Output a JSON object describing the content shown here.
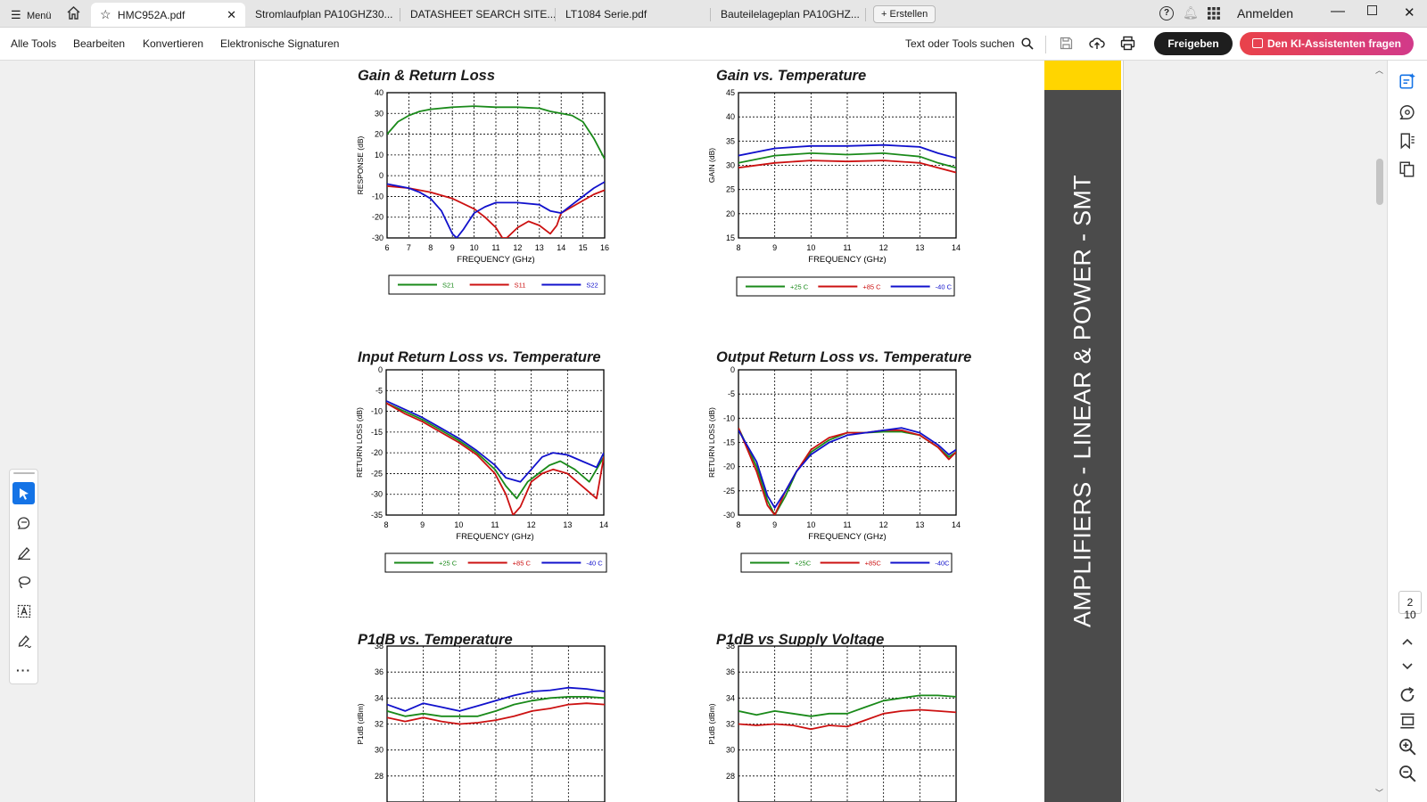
{
  "tabs": {
    "menu_label": "Menü",
    "items": [
      {
        "label": "HMC952A.pdf"
      },
      {
        "label": "Stromlaufplan PA10GHZ30..."
      },
      {
        "label": "DATASHEET SEARCH SITE..."
      },
      {
        "label": "LT1084  Serie.pdf"
      },
      {
        "label": "Bauteilelageplan PA10GHZ..."
      }
    ],
    "create_label": "Erstellen",
    "signin_label": "Anmelden"
  },
  "toolbar": {
    "menu": [
      "Alle Tools",
      "Bearbeiten",
      "Konvertieren",
      "Elektronische Signaturen"
    ],
    "search_label": "Text oder Tools suchen",
    "share_label": "Freigeben",
    "ai_label": "Den KI-Assistenten fragen"
  },
  "banner": {
    "text": "AMPLIFIERS - LINEAR & POWER - SMT",
    "colors": {
      "band": "#ffd500",
      "bar": "#4b4b4b"
    }
  },
  "page_nav": {
    "current": "2",
    "total": "10"
  },
  "chart_data": [
    {
      "type": "line",
      "title": "Gain & Return Loss",
      "xlabel": "FREQUENCY (GHz)",
      "ylabel": "RESPONSE (dB)",
      "xlim": [
        6,
        16
      ],
      "ylim": [
        -30,
        40
      ],
      "xticks": [
        "6",
        "7",
        "8",
        "9",
        "10",
        "11",
        "12",
        "13",
        "14",
        "15",
        "16"
      ],
      "yticks": [
        "-30",
        "-20",
        "-10",
        "0",
        "10",
        "20",
        "30",
        "40"
      ],
      "series": [
        {
          "name": "S21",
          "color": "#1a8a1a",
          "x": [
            6,
            6.5,
            7,
            7.5,
            8,
            9,
            10,
            11,
            12,
            13,
            13.5,
            14,
            14.5,
            15,
            15.5,
            16
          ],
          "y": [
            20,
            26,
            29,
            31,
            32,
            33,
            33.5,
            33,
            33,
            32.5,
            31,
            30,
            29,
            26,
            18,
            8
          ]
        },
        {
          "name": "S11",
          "color": "#cc1111",
          "x": [
            6,
            7,
            8,
            9,
            10,
            10.5,
            11,
            11.3,
            11.5,
            12,
            12.5,
            13,
            13.5,
            13.8,
            14,
            14.5,
            15,
            15.5,
            16
          ],
          "y": [
            -5,
            -6,
            -8,
            -11,
            -16,
            -20,
            -25,
            -30,
            -30,
            -25,
            -22,
            -24,
            -28,
            -24,
            -18,
            -15,
            -12,
            -9,
            -7
          ]
        },
        {
          "name": "S22",
          "color": "#1111cc",
          "x": [
            6,
            6.5,
            7,
            7.5,
            8,
            8.5,
            9,
            9.2,
            9.5,
            10,
            10.5,
            11,
            12,
            13,
            13.5,
            14,
            14.5,
            15,
            15.5,
            16
          ],
          "y": [
            -4,
            -5,
            -6,
            -8,
            -11,
            -17,
            -28,
            -30,
            -26,
            -18,
            -15,
            -13,
            -13,
            -14,
            -17,
            -18,
            -14,
            -10,
            -6,
            -3
          ]
        }
      ]
    },
    {
      "type": "line",
      "title": "Gain vs. Temperature",
      "xlabel": "FREQUENCY (GHz)",
      "ylabel": "GAIN (dB)",
      "xlim": [
        8,
        14
      ],
      "ylim": [
        15,
        45
      ],
      "xticks": [
        "8",
        "9",
        "10",
        "11",
        "12",
        "13",
        "14"
      ],
      "yticks": [
        "15",
        "20",
        "25",
        "30",
        "35",
        "40",
        "45"
      ],
      "series": [
        {
          "name": "+25 C",
          "color": "#1a8a1a",
          "x": [
            8,
            9,
            10,
            11,
            12,
            13,
            13.5,
            14
          ],
          "y": [
            30.5,
            32,
            32.5,
            32.2,
            32.5,
            31.8,
            30.5,
            29.5
          ]
        },
        {
          "name": "+85 C",
          "color": "#cc1111",
          "x": [
            8,
            9,
            10,
            11,
            12,
            13,
            13.5,
            14
          ],
          "y": [
            29.5,
            30.5,
            31,
            30.8,
            31,
            30.5,
            29.5,
            28.5
          ]
        },
        {
          "name": "-40 C",
          "color": "#1111cc",
          "x": [
            8,
            9,
            10,
            11,
            12,
            13,
            13.5,
            14
          ],
          "y": [
            32,
            33.5,
            34,
            34,
            34.2,
            33.8,
            32.5,
            31.5
          ]
        }
      ]
    },
    {
      "type": "line",
      "title": "Input Return Loss vs. Temperature",
      "xlabel": "FREQUENCY (GHz)",
      "ylabel": "RETURN LOSS (dB)",
      "xlim": [
        8,
        14
      ],
      "ylim": [
        -35,
        0
      ],
      "xticks": [
        "8",
        "9",
        "10",
        "11",
        "12",
        "13",
        "14"
      ],
      "yticks": [
        "-35",
        "-30",
        "-25",
        "-20",
        "-15",
        "-10",
        "-5",
        "0"
      ],
      "series": [
        {
          "name": "+25 C",
          "color": "#1a8a1a",
          "x": [
            8,
            8.5,
            9,
            9.5,
            10,
            10.5,
            11,
            11.3,
            11.6,
            11.9,
            12.2,
            12.5,
            12.8,
            13.2,
            13.6,
            14
          ],
          "y": [
            -8,
            -10,
            -12,
            -14.5,
            -17,
            -20,
            -24,
            -28,
            -31,
            -27,
            -25,
            -23,
            -22,
            -24,
            -27,
            -21
          ]
        },
        {
          "name": "+85 C",
          "color": "#cc1111",
          "x": [
            8,
            8.5,
            9,
            9.5,
            10,
            10.5,
            11,
            11.3,
            11.5,
            11.7,
            12,
            12.3,
            12.6,
            13,
            13.4,
            13.8,
            14
          ],
          "y": [
            -8,
            -10.5,
            -12.5,
            -15,
            -17.5,
            -20.5,
            -25,
            -30,
            -35,
            -33,
            -27,
            -25,
            -24,
            -25,
            -28,
            -31,
            -21
          ]
        },
        {
          "name": "-40 C",
          "color": "#1111cc",
          "x": [
            8,
            8.5,
            9,
            9.5,
            10,
            10.5,
            11,
            11.3,
            11.7,
            12,
            12.3,
            12.6,
            13,
            13.4,
            13.8,
            14
          ],
          "y": [
            -7.5,
            -9.5,
            -11.5,
            -14,
            -16.5,
            -19.5,
            -23,
            -26,
            -27,
            -24,
            -21,
            -20,
            -20.5,
            -22,
            -23.5,
            -20
          ]
        }
      ]
    },
    {
      "type": "line",
      "title": "Output Return Loss vs. Temperature",
      "xlabel": "FREQUENCY (GHz)",
      "ylabel": "RETURN LOSS (dB)",
      "xlim": [
        8,
        14
      ],
      "ylim": [
        -30,
        0
      ],
      "xticks": [
        "8",
        "9",
        "10",
        "11",
        "12",
        "13",
        "14"
      ],
      "yticks": [
        "-30",
        "-25",
        "-20",
        "-15",
        "-10",
        "-5",
        "0"
      ],
      "series": [
        {
          "name": "+25C",
          "color": "#1a8a1a",
          "x": [
            8,
            8.5,
            8.8,
            9,
            9.3,
            9.6,
            10,
            10.5,
            11,
            11.5,
            12,
            12.5,
            13,
            13.5,
            13.8,
            14
          ],
          "y": [
            -12,
            -20,
            -27,
            -30,
            -26,
            -21,
            -17,
            -14.5,
            -13,
            -13,
            -12.8,
            -12.8,
            -13.5,
            -16,
            -18,
            -17
          ]
        },
        {
          "name": "+85C",
          "color": "#cc1111",
          "x": [
            8,
            8.5,
            8.8,
            9,
            9.3,
            9.6,
            10,
            10.5,
            11,
            11.5,
            12,
            12.5,
            13,
            13.5,
            13.8,
            14
          ],
          "y": [
            -12,
            -21,
            -28,
            -30,
            -25,
            -21,
            -16.5,
            -14,
            -13,
            -13,
            -12.5,
            -12.5,
            -13.5,
            -16,
            -18.5,
            -17
          ]
        },
        {
          "name": "-40C",
          "color": "#1111cc",
          "x": [
            8,
            8.5,
            8.8,
            9,
            9.3,
            9.6,
            10,
            10.5,
            11,
            11.5,
            12,
            12.5,
            13,
            13.5,
            13.8,
            14
          ],
          "y": [
            -12.5,
            -19,
            -26,
            -28.5,
            -25,
            -21,
            -17.5,
            -15,
            -13.5,
            -13,
            -12.5,
            -12,
            -13,
            -15.5,
            -17.5,
            -16.5
          ]
        }
      ]
    },
    {
      "type": "line",
      "title": "P1dB vs. Temperature",
      "xlabel": "",
      "ylabel": "P1dB (dBm)",
      "xlim": [
        8,
        14
      ],
      "ylim": [
        26,
        38
      ],
      "yticks": [
        "28",
        "30",
        "32",
        "34",
        "36",
        "38"
      ],
      "series": [
        {
          "name": "",
          "color": "#1a8a1a",
          "x": [
            8,
            8.5,
            9,
            9.5,
            10,
            10.5,
            11,
            11.5,
            12,
            12.5,
            13,
            13.5,
            14
          ],
          "y": [
            33,
            32.6,
            32.8,
            32.6,
            32.6,
            32.6,
            33,
            33.5,
            33.8,
            34,
            34.1,
            34.1,
            34
          ]
        },
        {
          "name": "",
          "color": "#cc1111",
          "x": [
            8,
            8.5,
            9,
            9.5,
            10,
            10.5,
            11,
            11.5,
            12,
            12.5,
            13,
            13.5,
            14
          ],
          "y": [
            32.5,
            32.2,
            32.5,
            32.2,
            32,
            32.1,
            32.3,
            32.6,
            33,
            33.2,
            33.5,
            33.6,
            33.5
          ]
        },
        {
          "name": "",
          "color": "#1111cc",
          "x": [
            8,
            8.5,
            9,
            9.5,
            10,
            10.5,
            11,
            11.5,
            12,
            12.5,
            13,
            13.5,
            14
          ],
          "y": [
            33.5,
            33,
            33.6,
            33.3,
            33,
            33.4,
            33.8,
            34.2,
            34.5,
            34.6,
            34.8,
            34.7,
            34.5
          ]
        }
      ]
    },
    {
      "type": "line",
      "title": "P1dB vs Supply Voltage",
      "xlabel": "",
      "ylabel": "P1dB (dBm)",
      "xlim": [
        8,
        14
      ],
      "ylim": [
        26,
        38
      ],
      "yticks": [
        "28",
        "30",
        "32",
        "34",
        "36",
        "38"
      ],
      "series": [
        {
          "name": "",
          "color": "#1a8a1a",
          "x": [
            8,
            8.5,
            9,
            9.5,
            10,
            10.5,
            11,
            11.5,
            12,
            12.5,
            13,
            13.5,
            14
          ],
          "y": [
            33,
            32.7,
            33,
            32.8,
            32.6,
            32.8,
            32.8,
            33.3,
            33.8,
            34,
            34.2,
            34.2,
            34.1
          ]
        },
        {
          "name": "",
          "color": "#cc1111",
          "x": [
            8,
            8.5,
            9,
            9.5,
            10,
            10.5,
            11,
            11.5,
            12,
            12.5,
            13,
            13.5,
            14
          ],
          "y": [
            32,
            31.9,
            32,
            31.9,
            31.6,
            31.9,
            31.8,
            32.3,
            32.8,
            33,
            33.1,
            33,
            32.9
          ]
        }
      ]
    }
  ]
}
